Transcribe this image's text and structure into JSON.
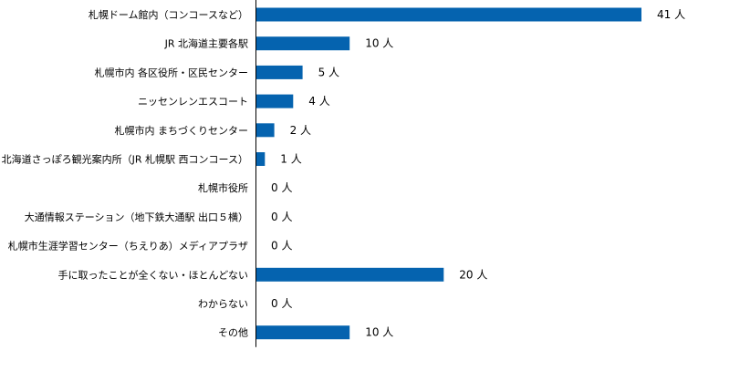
{
  "chart_data": {
    "type": "bar",
    "orientation": "horizontal",
    "categories": [
      "札幌ドーム館内（コンコースなど）",
      "JR 北海道主要各駅",
      "札幌市内 各区役所・区民センター",
      "ニッセンレンエスコート",
      "札幌市内 まちづくりセンター",
      "北海道さっぽろ観光案内所（JR 札幌駅 西コンコース）",
      "札幌市役所",
      "大通情報ステーション（地下鉄大通駅 出口５横）",
      "札幌市生涯学習センター（ちえりあ）メディアプラザ",
      "手に取ったことが全くない・ほとんどない",
      "わからない",
      "その他"
    ],
    "values": [
      41,
      10,
      5,
      4,
      2,
      1,
      0,
      0,
      0,
      20,
      0,
      10
    ],
    "value_labels": [
      "41 人",
      "10 人",
      "5 人",
      "4 人",
      "2 人",
      "1 人",
      "0 人",
      "0 人",
      "0 人",
      "20 人",
      "0 人",
      "10 人"
    ],
    "xlim": [
      0,
      41
    ],
    "grid": false,
    "legend": "none",
    "bar_color": "#0563af"
  }
}
